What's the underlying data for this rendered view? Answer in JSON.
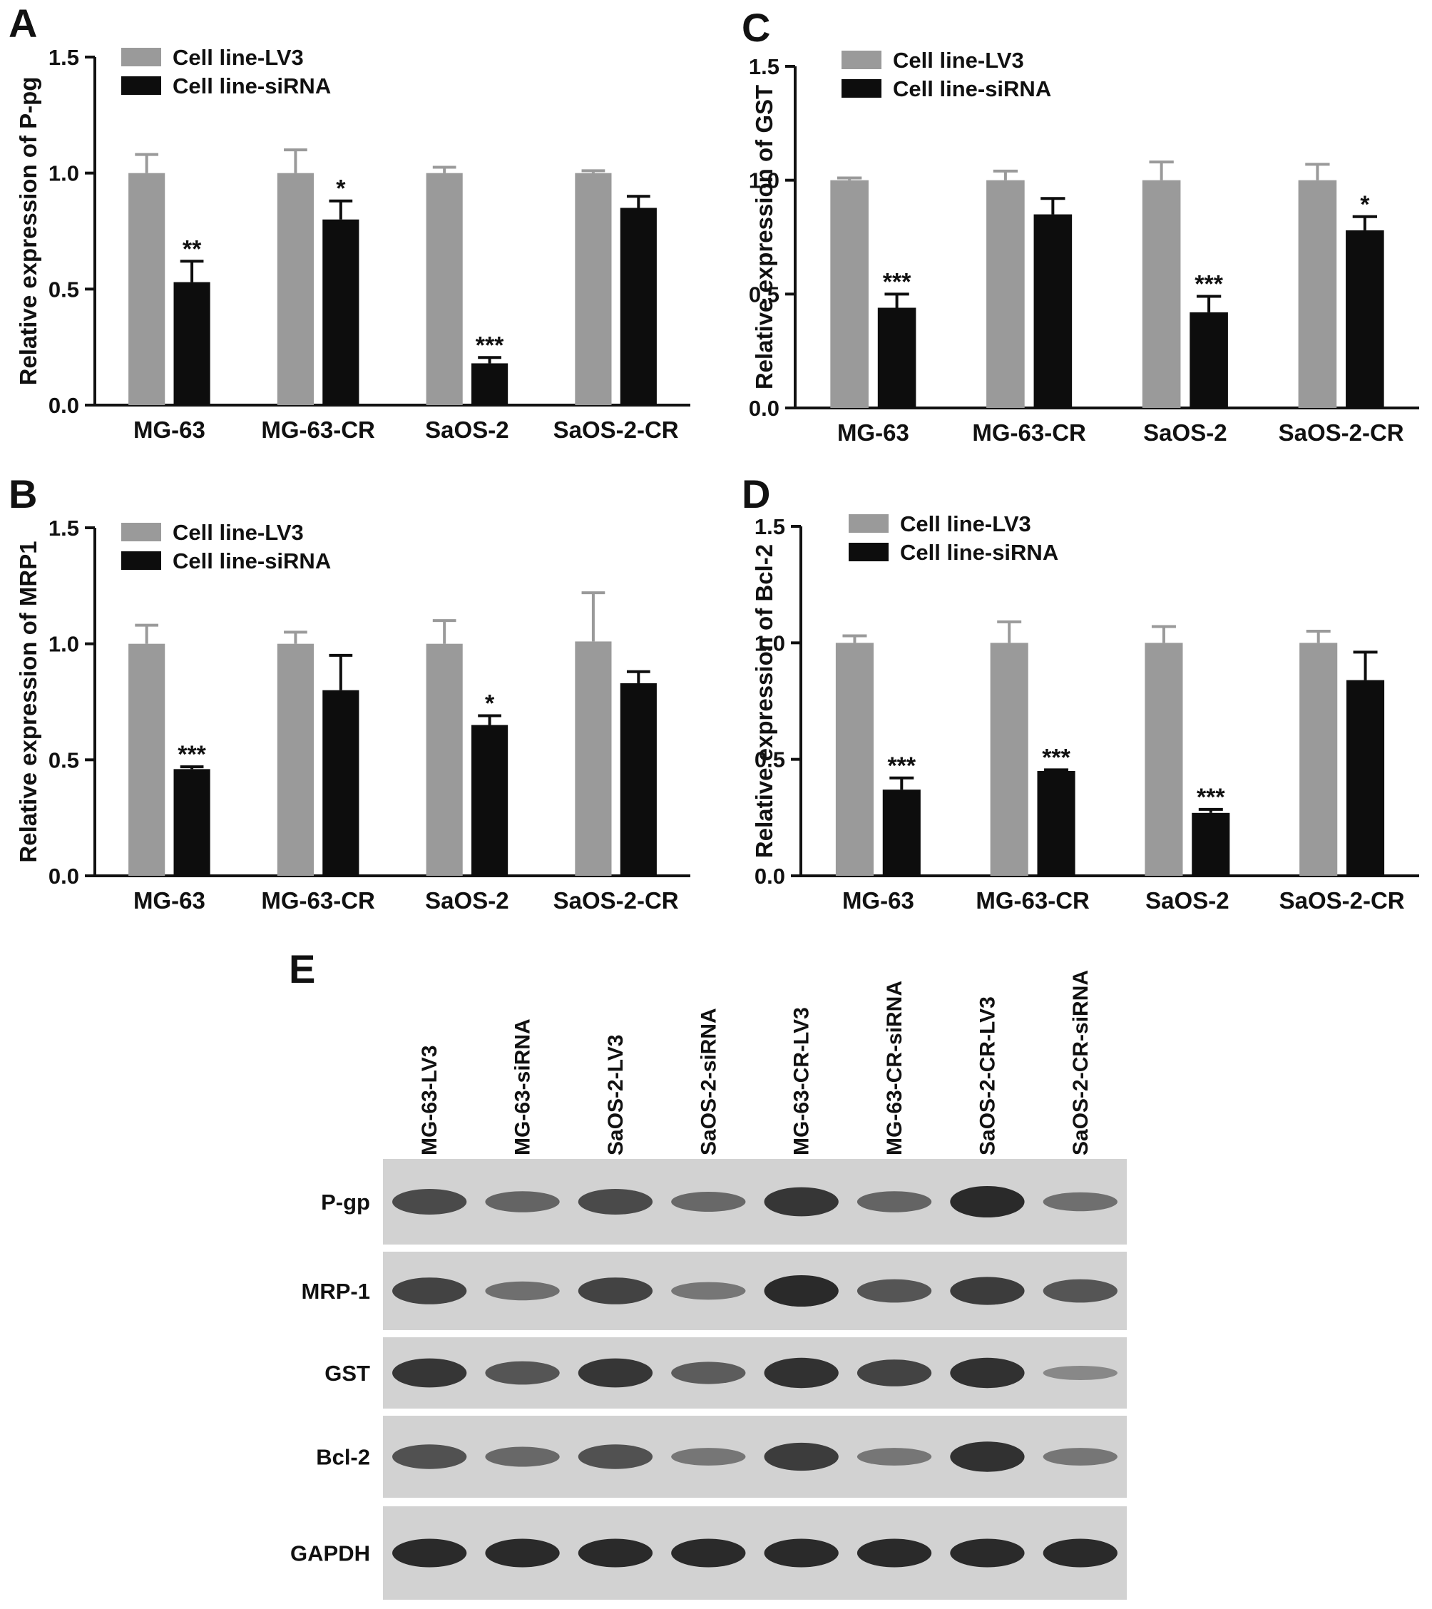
{
  "colors": {
    "lv3": "#9a9a9a",
    "sirna": "#0d0d0d",
    "axis": "#111111",
    "blot_bg": "#d2d2d2",
    "band": "#2a2a2a"
  },
  "chart_data": [
    {
      "panel_letter": "A",
      "type": "bar",
      "ylabel": "Relative expression of P-pg",
      "ylim": [
        0,
        1.5
      ],
      "yticks": [
        "0.0",
        "0.5",
        "1.0",
        "1.5"
      ],
      "categories": [
        "MG-63",
        "MG-63-CR",
        "SaOS-2",
        "SaOS-2-CR"
      ],
      "legend_position": "top-left",
      "series": [
        {
          "name": "Cell line-LV3",
          "values": [
            1.0,
            1.0,
            1.0,
            1.0
          ],
          "errors": [
            0.08,
            0.1,
            0.025,
            0.01
          ]
        },
        {
          "name": "Cell line-siRNA",
          "values": [
            0.53,
            0.8,
            0.18,
            0.85
          ],
          "errors": [
            0.09,
            0.08,
            0.025,
            0.05
          ]
        }
      ],
      "annotations": [
        "**",
        "*",
        "***",
        ""
      ]
    },
    {
      "panel_letter": "B",
      "type": "bar",
      "ylabel": "Relative expression of MRP1",
      "ylim": [
        0,
        1.5
      ],
      "yticks": [
        "0.0",
        "0.5",
        "1.0",
        "1.5"
      ],
      "categories": [
        "MG-63",
        "MG-63-CR",
        "SaOS-2",
        "SaOS-2-CR"
      ],
      "legend_position": "top-left",
      "series": [
        {
          "name": "Cell line-LV3",
          "values": [
            1.0,
            1.0,
            1.0,
            1.01
          ],
          "errors": [
            0.08,
            0.05,
            0.1,
            0.21
          ]
        },
        {
          "name": "Cell line-siRNA",
          "values": [
            0.46,
            0.8,
            0.65,
            0.83
          ],
          "errors": [
            0.01,
            0.15,
            0.04,
            0.05
          ]
        }
      ],
      "annotations": [
        "***",
        "",
        "*",
        ""
      ]
    },
    {
      "panel_letter": "C",
      "type": "bar",
      "ylabel": "Relative expression of GST",
      "ylim": [
        0,
        1.5
      ],
      "yticks": [
        "0.0",
        "0.5",
        "1.0",
        "1.5"
      ],
      "categories": [
        "MG-63",
        "MG-63-CR",
        "SaOS-2",
        "SaOS-2-CR"
      ],
      "legend_position": "top-left",
      "series": [
        {
          "name": "Cell line-LV3",
          "values": [
            1.0,
            1.0,
            1.0,
            1.0
          ],
          "errors": [
            0.01,
            0.04,
            0.08,
            0.07
          ]
        },
        {
          "name": "Cell line-siRNA",
          "values": [
            0.44,
            0.85,
            0.42,
            0.78
          ],
          "errors": [
            0.06,
            0.07,
            0.07,
            0.06
          ]
        }
      ],
      "annotations": [
        "***",
        "",
        "***",
        "*"
      ]
    },
    {
      "panel_letter": "D",
      "type": "bar",
      "ylabel": "Relative expression of Bcl-2",
      "ylim": [
        0,
        1.5
      ],
      "yticks": [
        "0.0",
        "0.5",
        "1.0",
        "1.5"
      ],
      "categories": [
        "MG-63",
        "MG-63-CR",
        "SaOS-2",
        "SaOS-2-CR"
      ],
      "legend_position": "top-left",
      "series": [
        {
          "name": "Cell line-LV3",
          "values": [
            1.0,
            1.0,
            1.0,
            1.0
          ],
          "errors": [
            0.03,
            0.09,
            0.07,
            0.05
          ]
        },
        {
          "name": "Cell line-siRNA",
          "values": [
            0.37,
            0.45,
            0.27,
            0.84
          ],
          "errors": [
            0.05,
            0.005,
            0.015,
            0.12
          ]
        }
      ],
      "annotations": [
        "***",
        "***",
        "***",
        ""
      ]
    }
  ],
  "blot": {
    "panel_letter": "E",
    "lanes": [
      "MG-63-LV3",
      "MG-63-siRNA",
      "SaOS-2-LV3",
      "SaOS-2-siRNA",
      "MG-63-CR-LV3",
      "MG-63-CR-siRNA",
      "SaOS-2-CR-LV3",
      "SaOS-2-CR-siRNA"
    ],
    "rows": [
      {
        "label": "P-gp",
        "intensities": [
          0.75,
          0.55,
          0.75,
          0.5,
          0.9,
          0.55,
          1.0,
          0.45
        ]
      },
      {
        "label": "MRP-1",
        "intensities": [
          0.8,
          0.45,
          0.8,
          0.4,
          1.0,
          0.65,
          0.85,
          0.65
        ]
      },
      {
        "label": "GST",
        "intensities": [
          0.9,
          0.65,
          0.9,
          0.6,
          0.95,
          0.8,
          0.95,
          0.25
        ]
      },
      {
        "label": "Bcl-2",
        "intensities": [
          0.7,
          0.5,
          0.7,
          0.4,
          0.85,
          0.4,
          0.95,
          0.4
        ]
      },
      {
        "label": "GAPDH",
        "intensities": [
          1.0,
          1.0,
          1.0,
          1.0,
          1.0,
          1.0,
          1.0,
          1.0
        ]
      }
    ]
  }
}
